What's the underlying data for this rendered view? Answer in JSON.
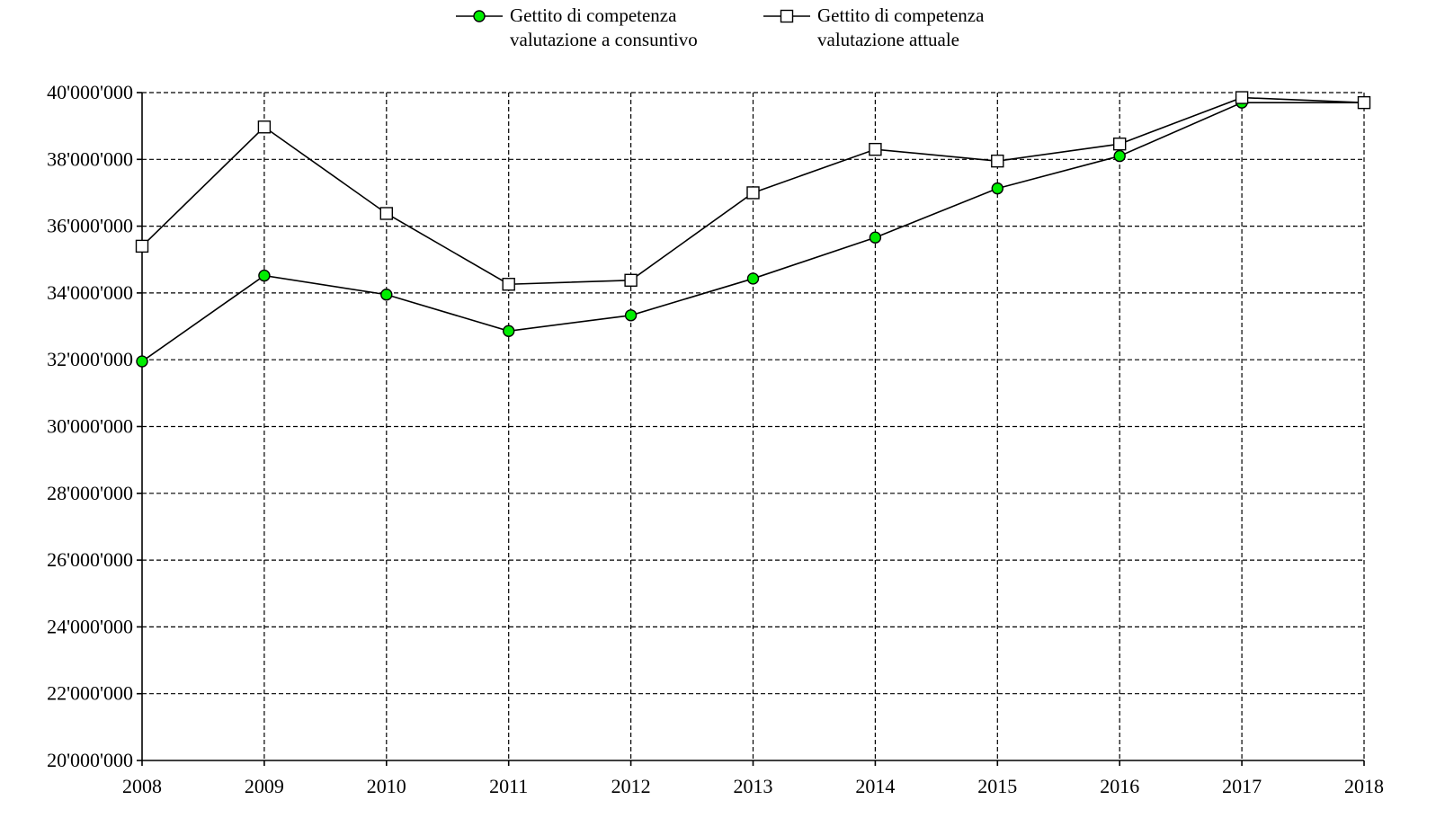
{
  "chart_data": {
    "type": "line",
    "categories": [
      "2008",
      "2009",
      "2010",
      "2011",
      "2012",
      "2013",
      "2014",
      "2015",
      "2016",
      "2017",
      "2018"
    ],
    "series": [
      {
        "name": "Gettito di competenza valutazione a consuntivo",
        "legend_lines": [
          "Gettito di competenza",
          "valutazione a consuntivo"
        ],
        "marker": "circle",
        "marker_color": "#00ee00",
        "values": [
          31950000,
          34520000,
          33950000,
          32860000,
          33330000,
          34430000,
          35660000,
          37130000,
          38100000,
          39700000,
          39700000
        ]
      },
      {
        "name": "Gettito di competenza valutazione attuale",
        "legend_lines": [
          "Gettito di competenza",
          "valutazione attuale"
        ],
        "marker": "square",
        "marker_color": "#ffffff",
        "values": [
          35400000,
          38970000,
          36380000,
          34260000,
          34380000,
          37000000,
          38300000,
          37950000,
          38460000,
          39850000,
          39700000
        ]
      }
    ],
    "ylim": [
      20000000,
      40000000
    ],
    "y_ticks": [
      "20'000'000",
      "22'000'000",
      "24'000'000",
      "26'000'000",
      "28'000'000",
      "30'000'000",
      "32'000'000",
      "34'000'000",
      "36'000'000",
      "38'000'000",
      "40'000'000"
    ],
    "grid": true,
    "legend_position": "top",
    "title": "",
    "xlabel": "",
    "ylabel": ""
  }
}
